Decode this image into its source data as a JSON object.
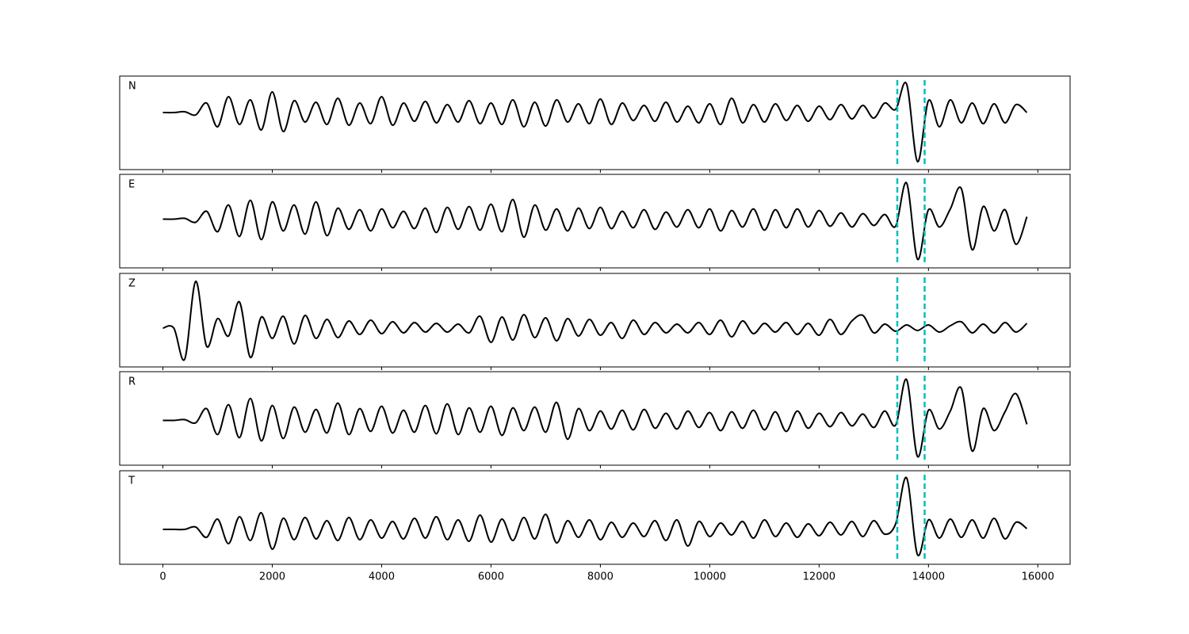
{
  "chart_data": [
    {
      "type": "line",
      "label": "N",
      "color": "#000000",
      "vline_color": "#00bfbf",
      "vlines": [
        13430,
        13930
      ],
      "tick_labels": false,
      "xlim": [
        -790,
        16590
      ],
      "ylim": [
        -7.2,
        4.6
      ],
      "xticks": [
        0,
        2000,
        4000,
        6000,
        8000,
        10000,
        12000,
        14000,
        16000
      ],
      "x": [
        0,
        200,
        400,
        600,
        800,
        1000,
        1200,
        1400,
        1600,
        1800,
        2000,
        2200,
        2400,
        2600,
        2800,
        3000,
        3200,
        3400,
        3600,
        3800,
        4000,
        4200,
        4400,
        4600,
        4800,
        5000,
        5200,
        5400,
        5600,
        5800,
        6000,
        6200,
        6400,
        6600,
        6800,
        7000,
        7200,
        7400,
        7600,
        7800,
        8000,
        8200,
        8400,
        8600,
        8800,
        9000,
        9200,
        9400,
        9600,
        9800,
        10000,
        10200,
        10400,
        10600,
        10800,
        11000,
        11200,
        11400,
        11600,
        11800,
        12000,
        12200,
        12400,
        12600,
        12800,
        13000,
        13200,
        13400,
        13600,
        13800,
        14000,
        14200,
        14400,
        14600,
        14800,
        15000,
        15200,
        15400,
        15600,
        15800
      ],
      "values": [
        0,
        0,
        0.1,
        -0.3,
        1.2,
        -1.8,
        2,
        -1.5,
        1.6,
        -2.2,
        2.6,
        -2.4,
        1.5,
        -1.2,
        1.3,
        -1.5,
        1.8,
        -1.6,
        1.2,
        -1.4,
        2,
        -1.6,
        1.2,
        -1.1,
        1.4,
        -1.3,
        1,
        -1.2,
        1.5,
        -1.4,
        1.2,
        -1.5,
        1.6,
        -1.8,
        1.3,
        -1.7,
        1.6,
        -1.2,
        1.1,
        -1.4,
        1.7,
        -1.5,
        1.2,
        -1,
        0.9,
        -1.1,
        1.3,
        -1.2,
        0.8,
        -1.3,
        1.1,
        -1.5,
        1.8,
        -1.3,
        1,
        -1.2,
        1.1,
        -1,
        0.9,
        -1.1,
        0.8,
        -0.9,
        1,
        -0.8,
        0.9,
        -0.7,
        1.2,
        0.4,
        3.6,
        -6.2,
        1.5,
        -1.8,
        1.6,
        -1.3,
        1.2,
        -1.4,
        1.1,
        -1.3,
        1,
        0
      ]
    },
    {
      "type": "line",
      "label": "E",
      "color": "#000000",
      "vline_color": "#00bfbf",
      "vlines": [
        13430,
        13930
      ],
      "tick_labels": false,
      "xlim": [
        -790,
        16590
      ],
      "ylim": [
        -6.2,
        5.7
      ],
      "xticks": [
        0,
        2000,
        4000,
        6000,
        8000,
        10000,
        12000,
        14000,
        16000
      ],
      "x": [
        0,
        200,
        400,
        600,
        800,
        1000,
        1200,
        1400,
        1600,
        1800,
        2000,
        2200,
        2400,
        2600,
        2800,
        3000,
        3200,
        3400,
        3600,
        3800,
        4000,
        4200,
        4400,
        4600,
        4800,
        5000,
        5200,
        5400,
        5600,
        5800,
        6000,
        6200,
        6400,
        6600,
        6800,
        7000,
        7200,
        7400,
        7600,
        7800,
        8000,
        8200,
        8400,
        8600,
        8800,
        9000,
        9200,
        9400,
        9600,
        9800,
        10000,
        10200,
        10400,
        10600,
        10800,
        11000,
        11200,
        11400,
        11600,
        11800,
        12000,
        12200,
        12400,
        12600,
        12800,
        13000,
        13200,
        13400,
        13600,
        13800,
        14000,
        14200,
        14400,
        14600,
        14800,
        15000,
        15200,
        15400,
        15600,
        15800
      ],
      "values": [
        0,
        0,
        0.1,
        -0.4,
        1,
        -1.6,
        1.8,
        -2.2,
        2.4,
        -2.6,
        2.2,
        -1.5,
        1.8,
        -1.9,
        2.2,
        -2.1,
        1.4,
        -1.3,
        1.2,
        -1.5,
        1.3,
        -1.1,
        1,
        -1.2,
        1.4,
        -1.7,
        1.5,
        -1.3,
        1.6,
        -1.4,
        1.9,
        -1.6,
        2.5,
        -2.3,
        1.8,
        -1.4,
        1.3,
        -1.5,
        1.4,
        -1.2,
        1.5,
        -1.2,
        1,
        -1.1,
        1.2,
        -1.3,
        0.9,
        -1,
        1.2,
        -1.1,
        1.3,
        -1.5,
        1.1,
        -1,
        1.3,
        -1.4,
        1.2,
        -1.1,
        1.3,
        -1,
        1.1,
        -0.9,
        0.8,
        -1,
        0.7,
        -0.8,
        0.6,
        -0.9,
        4.6,
        -5.1,
        1.2,
        -1,
        1.3,
        3.9,
        -3.9,
        1.6,
        -1.5,
        1.2,
        -3.2,
        0.3
      ]
    },
    {
      "type": "line",
      "label": "Z",
      "color": "#000000",
      "vline_color": "#00bfbf",
      "vlines": [
        13430,
        13930
      ],
      "tick_labels": false,
      "xlim": [
        -790,
        16590
      ],
      "ylim": [
        -4.9,
        6.9
      ],
      "xticks": [
        0,
        2000,
        4000,
        6000,
        8000,
        10000,
        12000,
        14000,
        16000
      ],
      "x": [
        0,
        200,
        400,
        600,
        800,
        1000,
        1200,
        1400,
        1600,
        1800,
        2000,
        2200,
        2400,
        2600,
        2800,
        3000,
        3200,
        3400,
        3600,
        3800,
        4000,
        4200,
        4400,
        4600,
        4800,
        5000,
        5200,
        5400,
        5600,
        5800,
        6000,
        6200,
        6400,
        6600,
        6800,
        7000,
        7200,
        7400,
        7600,
        7800,
        8000,
        8200,
        8400,
        8600,
        8800,
        9000,
        9200,
        9400,
        9600,
        9800,
        10000,
        10200,
        10400,
        10600,
        10800,
        11000,
        11200,
        11400,
        11600,
        11800,
        12000,
        12200,
        12400,
        12600,
        12800,
        13000,
        13200,
        13400,
        13600,
        13800,
        14000,
        14200,
        14400,
        14600,
        14800,
        15000,
        15200,
        15400,
        15600,
        15800
      ],
      "values": [
        0,
        0,
        -3.9,
        5.9,
        -2.3,
        1.2,
        -1,
        3.3,
        -3.7,
        1.4,
        -1.3,
        1.5,
        -2,
        1.6,
        -1.3,
        1.1,
        -1.2,
        0.9,
        -0.8,
        1,
        -0.7,
        0.8,
        -0.6,
        0.7,
        -0.5,
        0.6,
        -0.5,
        0.5,
        -0.6,
        1.5,
        -1.8,
        1.4,
        -1.5,
        1.7,
        -1.2,
        1.3,
        -1.6,
        1.2,
        -1,
        1.1,
        -0.9,
        0.7,
        -1.3,
        1,
        -0.8,
        0.7,
        -0.6,
        0.5,
        -0.6,
        0.7,
        -0.8,
        1,
        -1.1,
        0.9,
        -0.7,
        0.6,
        -0.5,
        0.7,
        -0.8,
        0.6,
        -0.9,
        1.1,
        -0.8,
        0.9,
        1.6,
        -0.6,
        0.5,
        -0.4,
        0.4,
        -0.3,
        0.4,
        -0.5,
        0.3,
        0.8,
        -0.6,
        0.5,
        -0.6,
        0.7,
        -0.5,
        0.6
      ]
    },
    {
      "type": "line",
      "label": "R",
      "color": "#000000",
      "vline_color": "#00bfbf",
      "vlines": [
        13430,
        13930
      ],
      "tick_labels": false,
      "xlim": [
        -790,
        16590
      ],
      "ylim": [
        -5.7,
        6.2
      ],
      "xticks": [
        0,
        2000,
        4000,
        6000,
        8000,
        10000,
        12000,
        14000,
        16000
      ],
      "x": [
        0,
        200,
        400,
        600,
        800,
        1000,
        1200,
        1400,
        1600,
        1800,
        2000,
        2200,
        2400,
        2600,
        2800,
        3000,
        3200,
        3400,
        3600,
        3800,
        4000,
        4200,
        4400,
        4600,
        4800,
        5000,
        5200,
        5400,
        5600,
        5800,
        6000,
        6200,
        6400,
        6600,
        6800,
        7000,
        7200,
        7400,
        7600,
        7800,
        8000,
        8200,
        8400,
        8600,
        8800,
        9000,
        9200,
        9400,
        9600,
        9800,
        10000,
        10200,
        10400,
        10600,
        10800,
        11000,
        11200,
        11400,
        11600,
        11800,
        12000,
        12200,
        12400,
        12600,
        12800,
        13000,
        13200,
        13400,
        13600,
        13800,
        14000,
        14200,
        14400,
        14600,
        14800,
        15000,
        15200,
        15400,
        15600,
        15800
      ],
      "values": [
        0,
        0,
        0.1,
        -0.3,
        1.5,
        -1.8,
        2,
        -2.2,
        2.8,
        -2.6,
        1.9,
        -2.3,
        1.7,
        -1.5,
        1.4,
        -1.6,
        2.2,
        -1.8,
        1.5,
        -1.4,
        1.8,
        -1.6,
        1.3,
        -1.5,
        1.9,
        -1.7,
        2.1,
        -1.8,
        1.6,
        -1.5,
        1.8,
        -1.9,
        1.6,
        -1.3,
        1.7,
        -1.5,
        2.3,
        -2.4,
        1.5,
        -1.3,
        1.2,
        -1.1,
        1.3,
        -1.2,
        1.4,
        -1,
        0.9,
        -1.1,
        1.2,
        -0.9,
        1,
        -1.3,
        1.1,
        -1,
        1.3,
        -1.2,
        1.1,
        -1.4,
        1.2,
        -1,
        0.9,
        -0.8,
        1,
        -0.7,
        0.8,
        -0.9,
        1.2,
        -0.6,
        5.2,
        -4.6,
        1.3,
        -1.1,
        1.2,
        4.1,
        -3.9,
        1.5,
        -1.3,
        1.1,
        3.4,
        -0.5
      ]
    },
    {
      "type": "line",
      "label": "T",
      "color": "#000000",
      "vline_color": "#00bfbf",
      "vlines": [
        13430,
        13930
      ],
      "tick_labels": true,
      "xlim": [
        -790,
        16590
      ],
      "ylim": [
        -4.4,
        7.4
      ],
      "xticks": [
        0,
        2000,
        4000,
        6000,
        8000,
        10000,
        12000,
        14000,
        16000
      ],
      "x": [
        0,
        200,
        400,
        600,
        800,
        1000,
        1200,
        1400,
        1600,
        1800,
        2000,
        2200,
        2400,
        2600,
        2800,
        3000,
        3200,
        3400,
        3600,
        3800,
        4000,
        4200,
        4400,
        4600,
        4800,
        5000,
        5200,
        5400,
        5600,
        5800,
        6000,
        6200,
        6400,
        6600,
        6800,
        7000,
        7200,
        7400,
        7600,
        7800,
        8000,
        8200,
        8400,
        8600,
        8800,
        9000,
        9200,
        9400,
        9600,
        9800,
        10000,
        10200,
        10400,
        10600,
        10800,
        11000,
        11200,
        11400,
        11600,
        11800,
        12000,
        12200,
        12400,
        12600,
        12800,
        13000,
        13200,
        13400,
        13600,
        13800,
        14000,
        14200,
        14400,
        14600,
        14800,
        15000,
        15200,
        15400,
        15600,
        15800
      ],
      "values": [
        0,
        0,
        0,
        0.3,
        -1,
        1.3,
        -1.8,
        1.6,
        -1.4,
        2.1,
        -2.5,
        1.4,
        -1.3,
        1.5,
        -1.2,
        1.1,
        -1.4,
        1.5,
        -1.3,
        1.2,
        -1.1,
        1,
        -1.2,
        1.4,
        -1.1,
        1.6,
        -1.3,
        1.2,
        -1.5,
        1.8,
        -1.6,
        1.3,
        -1.4,
        1.5,
        -1.2,
        1.9,
        -1.7,
        1.1,
        -1,
        1.2,
        -1.3,
        0.9,
        -1,
        0.8,
        -0.9,
        1.1,
        -1.4,
        1.2,
        -2.1,
        1,
        -0.9,
        0.8,
        -0.7,
        1,
        -1.1,
        1.2,
        -0.9,
        0.8,
        -1,
        0.7,
        -0.8,
        0.9,
        -0.7,
        1,
        -0.9,
        1.1,
        -0.6,
        0.7,
        6.5,
        -3.2,
        1.2,
        -1.1,
        1.3,
        -1,
        1.2,
        -1.1,
        1.4,
        -1.2,
        0.9,
        0.1
      ]
    }
  ]
}
